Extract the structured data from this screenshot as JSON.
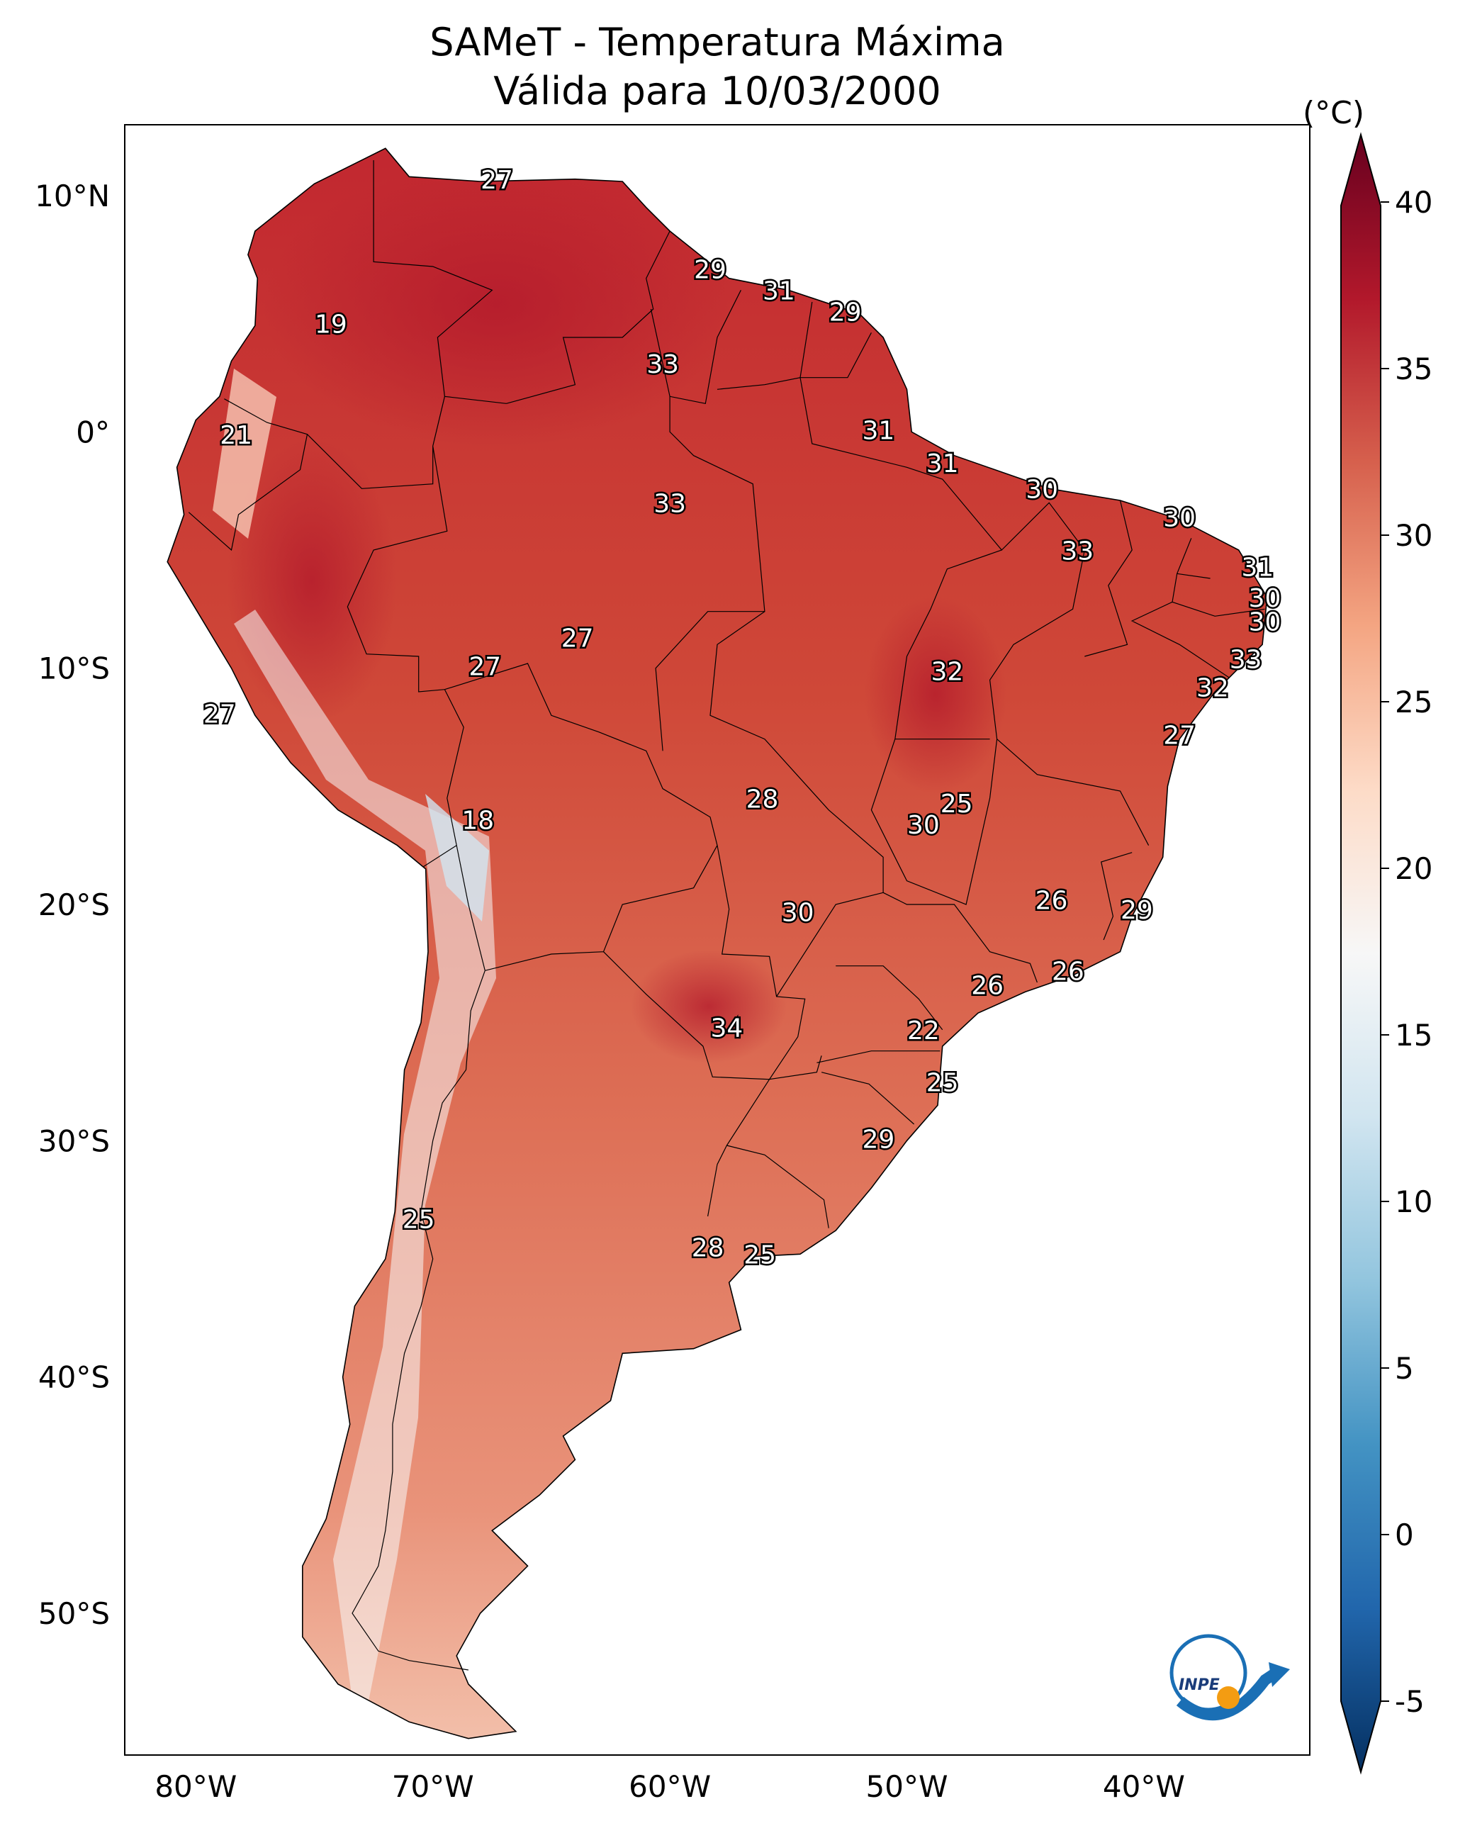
{
  "title": "SAMeT - Temperatura Máxima",
  "subtitle": "Válida para 10/03/2000",
  "colorbar": {
    "unit": "(°C)",
    "ticks": [
      "40",
      "35",
      "30",
      "25",
      "20",
      "15",
      "10",
      "5",
      "0",
      "-5"
    ],
    "colors": [
      "#67001f",
      "#b2182b",
      "#d6604d",
      "#f4a582",
      "#fddbc7",
      "#f7f7f7",
      "#d1e5f0",
      "#92c5de",
      "#4393c3",
      "#2166ac",
      "#053061"
    ]
  },
  "axes": {
    "lat_labels": [
      "10°N",
      "0°",
      "10°S",
      "20°S",
      "30°S",
      "40°S",
      "50°S"
    ],
    "lon_labels": [
      "80°W",
      "70°W",
      "60°W",
      "50°W",
      "40°W"
    ]
  },
  "logo": {
    "text": "INPE"
  },
  "station_labels": [
    {
      "v": "27",
      "lon": -67.3,
      "lat": 10.6
    },
    {
      "v": "19",
      "lon": -74.3,
      "lat": 4.5
    },
    {
      "v": "21",
      "lon": -78.3,
      "lat": -0.2
    },
    {
      "v": "29",
      "lon": -58.3,
      "lat": 6.8
    },
    {
      "v": "31",
      "lon": -55.4,
      "lat": 5.9
    },
    {
      "v": "29",
      "lon": -52.6,
      "lat": 5.0
    },
    {
      "v": "33",
      "lon": -60.3,
      "lat": 2.8
    },
    {
      "v": "31",
      "lon": -51.2,
      "lat": 0.0
    },
    {
      "v": "31",
      "lon": -48.5,
      "lat": -1.4
    },
    {
      "v": "30",
      "lon": -44.3,
      "lat": -2.5
    },
    {
      "v": "33",
      "lon": -60.0,
      "lat": -3.1
    },
    {
      "v": "30",
      "lon": -38.5,
      "lat": -3.7
    },
    {
      "v": "33",
      "lon": -42.8,
      "lat": -5.1
    },
    {
      "v": "31",
      "lon": -35.2,
      "lat": -5.8
    },
    {
      "v": "30",
      "lon": -34.9,
      "lat": -7.1
    },
    {
      "v": "30",
      "lon": -34.9,
      "lat": -8.1
    },
    {
      "v": "27",
      "lon": -63.9,
      "lat": -8.8
    },
    {
      "v": "27",
      "lon": -67.8,
      "lat": -10.0
    },
    {
      "v": "32",
      "lon": -48.3,
      "lat": -10.2
    },
    {
      "v": "33",
      "lon": -35.7,
      "lat": -9.7
    },
    {
      "v": "32",
      "lon": -37.1,
      "lat": -10.9
    },
    {
      "v": "27",
      "lon": -79.0,
      "lat": -12.0
    },
    {
      "v": "27",
      "lon": -38.5,
      "lat": -12.9
    },
    {
      "v": "28",
      "lon": -56.1,
      "lat": -15.6
    },
    {
      "v": "25",
      "lon": -47.9,
      "lat": -15.8
    },
    {
      "v": "30",
      "lon": -49.3,
      "lat": -16.7
    },
    {
      "v": "18",
      "lon": -68.1,
      "lat": -16.5
    },
    {
      "v": "26",
      "lon": -43.9,
      "lat": -19.9
    },
    {
      "v": "29",
      "lon": -40.3,
      "lat": -20.3
    },
    {
      "v": "30",
      "lon": -54.6,
      "lat": -20.4
    },
    {
      "v": "26",
      "lon": -43.2,
      "lat": -22.9
    },
    {
      "v": "26",
      "lon": -46.6,
      "lat": -23.5
    },
    {
      "v": "34",
      "lon": -57.6,
      "lat": -25.3
    },
    {
      "v": "22",
      "lon": -49.3,
      "lat": -25.4
    },
    {
      "v": "25",
      "lon": -48.5,
      "lat": -27.6
    },
    {
      "v": "29",
      "lon": -51.2,
      "lat": -30.0
    },
    {
      "v": "25",
      "lon": -70.6,
      "lat": -33.4
    },
    {
      "v": "28",
      "lon": -58.4,
      "lat": -34.6
    },
    {
      "v": "25",
      "lon": -56.2,
      "lat": -34.9
    }
  ]
}
